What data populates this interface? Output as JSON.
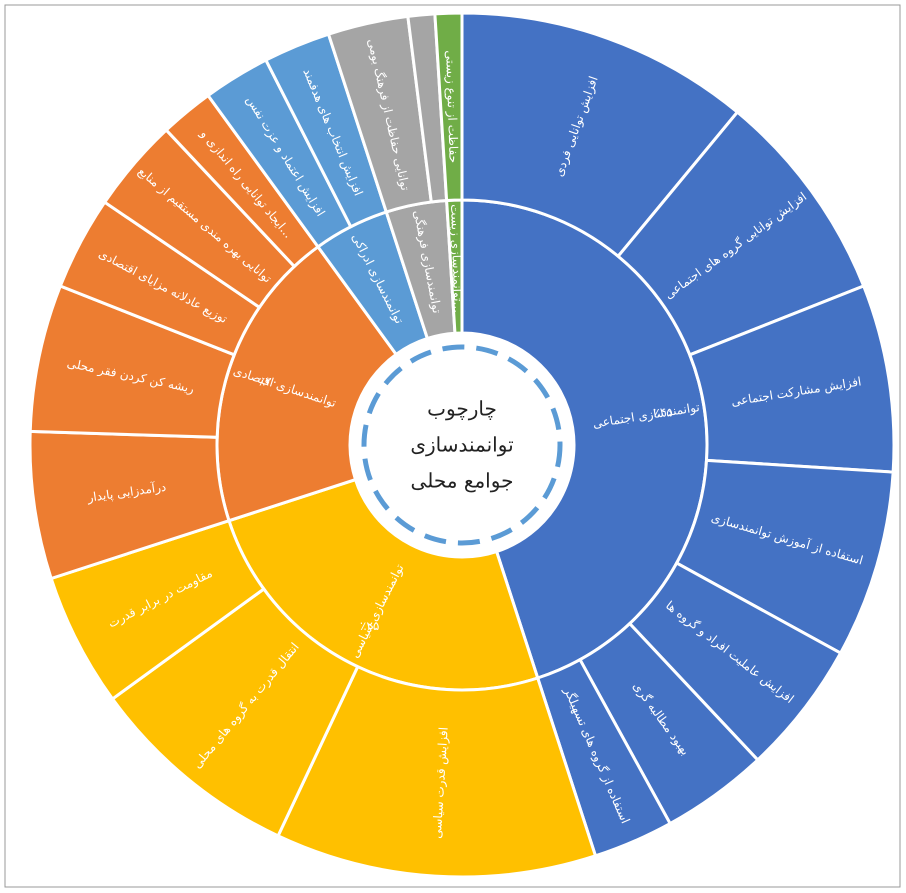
{
  "chart_data": {
    "type": "sunburst",
    "center_label": [
      "چارچوب",
      "توانمندسازی",
      "جوامع محلی"
    ],
    "categories": [
      "توانمندسازی اجتماعی",
      "توانمندسازی سیاسی",
      "توانمندسازی اقتصادی",
      "توانمندسازی ادراکی",
      "توانمندسازی فرهنگی",
      "توانمندسازی زیست..."
    ],
    "values": [
      45,
      25,
      20,
      5,
      4,
      1
    ],
    "value_labels": [
      "٪۴۵",
      "٪۲۵",
      "٪۲۰",
      null,
      null,
      null
    ],
    "colors": [
      "#4472c4",
      "#ffc000",
      "#ed7d31",
      "#5b9bd5",
      "#a5a5a5",
      "#70ad47"
    ],
    "children": [
      {
        "categories": [
          "افزایش توانایی فردی",
          "افزایش توانایی گروه های اجتماعی",
          "افزایش مشارکت اجتماعی",
          "استفاده از آموزش توانمندسازی",
          "افزایش عاملیت افراد و گروه ها",
          "بهبود مطالبه گری",
          "استفاده از گروه های تسهیلگر"
        ],
        "values": [
          11,
          8,
          7,
          7,
          5,
          4,
          3
        ]
      },
      {
        "categories": [
          "افزایش قدرت سیاسی",
          "انتقال قدرت به گروه های محلی",
          "مقاومت در برابر قدرت"
        ],
        "values": [
          12,
          8,
          5
        ]
      },
      {
        "categories": [
          "درآمدزایی پایدار",
          "ریشه کن کردن فقر محلی",
          "توزیع عادلانه مزایای اقتصادی",
          "توانایی بهره مندی مستقیم از منابع",
          "ایجاد توانایی راه اندازی و..."
        ],
        "values": [
          5.5,
          5.5,
          3.5,
          3.5,
          2
        ]
      },
      {
        "categories": [
          "افزایش اعتماد و عزت نفس",
          "افزایش انتخاب های هدفمند"
        ],
        "values": [
          2.5,
          2.5
        ]
      },
      {
        "categories": [
          "توانایی حفاظت از فرهنگ بومی",
          null
        ],
        "values": [
          3,
          1
        ]
      },
      {
        "categories": [
          "حفاظت از تنوع زیستی"
        ],
        "values": [
          1
        ]
      }
    ]
  }
}
